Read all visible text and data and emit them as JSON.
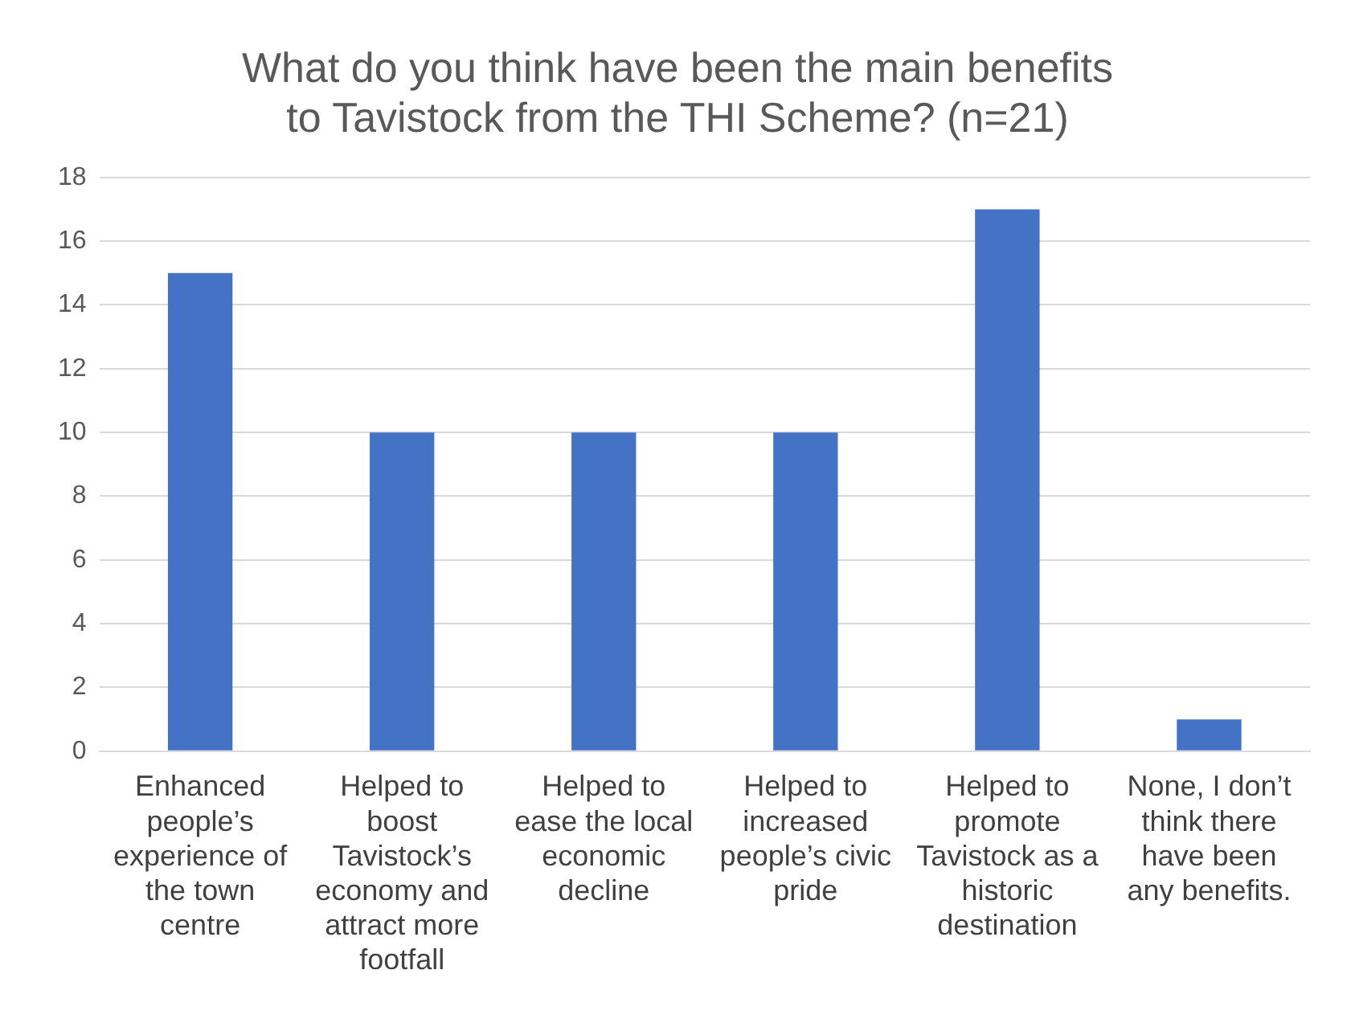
{
  "chart_data": {
    "type": "bar",
    "title": "What do you think have been the main benefits to Tavistock from the THI Scheme? (n=21)",
    "categories": [
      "Enhanced people’s experience of the town centre",
      "Helped to boost Tavistock’s economy and attract more footfall",
      "Helped to ease the local economic decline",
      "Helped to increased people’s civic pride",
      "Helped to promote Tavistock as a historic destination",
      "None, I don’t think there have been any benefits."
    ],
    "values": [
      15,
      10,
      10,
      10,
      17,
      1
    ],
    "color": "#4472c4",
    "ylim": [
      0,
      18
    ],
    "yticks": [
      0,
      2,
      4,
      6,
      8,
      10,
      12,
      14,
      16,
      18
    ],
    "grid": "y",
    "legend": false
  }
}
